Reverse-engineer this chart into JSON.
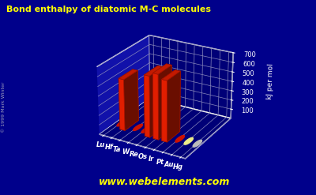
{
  "title": "Bond enthalpy of diatomic M-C molecules",
  "title_color": "#ffff00",
  "ylabel": "kJ per mol",
  "ylabel_color": "#ffffff",
  "background_color": "#00008B",
  "elements": [
    "Lu",
    "Hf",
    "Ta",
    "W",
    "Re",
    "Os",
    "Ir",
    "Pt",
    "Au",
    "Hg"
  ],
  "values": [
    0,
    536,
    0,
    0,
    634,
    672,
    631,
    0,
    0,
    0
  ],
  "bar_color": "#ff2200",
  "dot_colors_low": "#cc1100",
  "dot_color_au": "#eeee88",
  "dot_color_hg": "#bbbbbb",
  "ylim": [
    0,
    700
  ],
  "yticks": [
    0,
    100,
    200,
    300,
    400,
    500,
    600,
    700
  ],
  "grid_color": "#8888bb",
  "tick_color": "#ffffff",
  "website": "www.webelements.com",
  "website_color": "#ffff00",
  "copyright": "© 1999 Mark Winter",
  "copyright_color": "#9999bb",
  "floor_color": "#1111aa",
  "wall_color": "#000077"
}
